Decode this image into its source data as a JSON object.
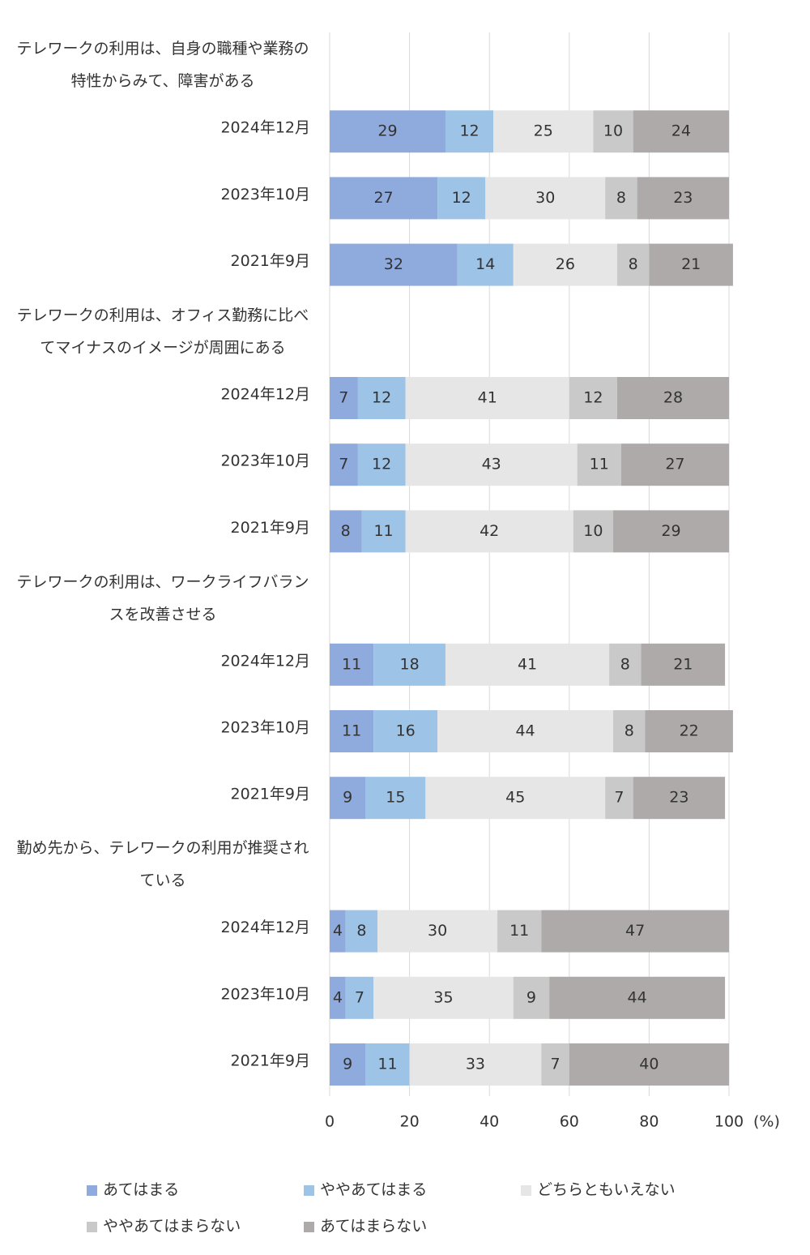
{
  "chart_data": {
    "type": "stacked_barh",
    "categories": [
      "テレワークの利用は、自身の職種や業務の特性からみて、障害がある",
      "2024年12月",
      "2023年10月",
      "2021年9月",
      "テレワークの利用は、オフィス勤務に比べてマイナスのイメージが周囲にある",
      "2024年12月",
      "2023年10月",
      "2021年9月",
      "テレワークの利用は、ワークライフバランスを改善させる",
      "2024年12月",
      "2023年10月",
      "2021年9月",
      "勤め先から、テレワークの利用が推奨されている",
      "2024年12月",
      "2023年10月",
      "2021年9月"
    ],
    "series": [
      {
        "name": "あてはまる",
        "color": "#8faadc",
        "values": [
          null,
          29,
          27,
          32,
          null,
          7,
          7,
          8,
          null,
          11,
          11,
          9,
          null,
          4,
          4,
          9
        ]
      },
      {
        "name": "ややあてはまる",
        "color": "#9dc3e6",
        "values": [
          null,
          12,
          12,
          14,
          null,
          12,
          12,
          11,
          null,
          18,
          16,
          15,
          null,
          8,
          7,
          11
        ]
      },
      {
        "name": "どちらともいえない",
        "color": "#e7e6e6",
        "values": [
          null,
          25,
          30,
          26,
          null,
          41,
          43,
          42,
          null,
          41,
          44,
          45,
          null,
          30,
          35,
          33
        ]
      },
      {
        "name": "ややあてはまらない",
        "color": "#c9c9c9",
        "values": [
          null,
          10,
          8,
          8,
          null,
          12,
          11,
          10,
          null,
          8,
          8,
          7,
          null,
          11,
          9,
          7
        ]
      },
      {
        "name": "あてはまらない",
        "color": "#aeaaaa",
        "values": [
          null,
          24,
          23,
          21,
          null,
          28,
          27,
          29,
          null,
          21,
          22,
          23,
          null,
          47,
          44,
          40
        ]
      }
    ],
    "x_label": "(%)",
    "xlim": [
      0,
      100
    ],
    "xticks": [
      0,
      20,
      40,
      60,
      80,
      100
    ],
    "grid": true
  }
}
